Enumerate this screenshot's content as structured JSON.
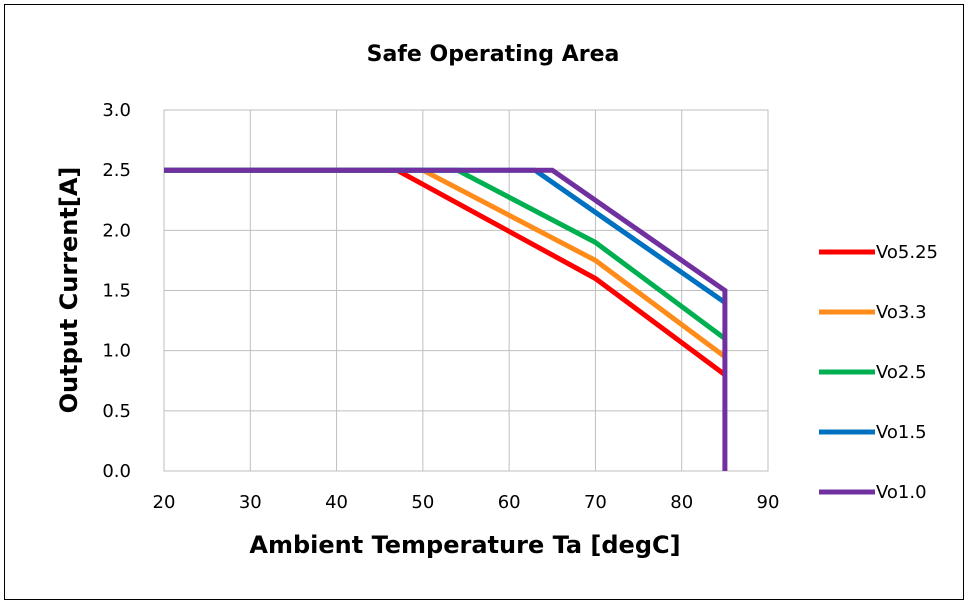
{
  "chart_data": {
    "type": "line",
    "title": "Safe Operating Area",
    "xlabel": "Ambient Temperature Ta [degC]",
    "ylabel": "Output Current[A]",
    "xlim": [
      20,
      90
    ],
    "ylim": [
      0,
      3.0
    ],
    "x_ticks": [
      "20",
      "30",
      "40",
      "50",
      "60",
      "70",
      "80",
      "90"
    ],
    "y_ticks": [
      "0.0",
      "0.5",
      "1.0",
      "1.5",
      "2.0",
      "2.5",
      "3.0"
    ],
    "grid": true,
    "legend_position": "right",
    "series": [
      {
        "name": "Vo5.25",
        "color": "#ff0000",
        "points": [
          [
            20,
            2.5
          ],
          [
            47,
            2.5
          ],
          [
            70,
            1.6
          ],
          [
            85,
            0.8
          ]
        ]
      },
      {
        "name": "Vo3.3",
        "color": "#ff8c1a",
        "points": [
          [
            20,
            2.5
          ],
          [
            50,
            2.5
          ],
          [
            70,
            1.75
          ],
          [
            85,
            0.95
          ]
        ]
      },
      {
        "name": "Vo2.5",
        "color": "#00b050",
        "points": [
          [
            20,
            2.5
          ],
          [
            54,
            2.5
          ],
          [
            70,
            1.9
          ],
          [
            85,
            1.1
          ]
        ]
      },
      {
        "name": "Vo1.5",
        "color": "#0070c0",
        "points": [
          [
            20,
            2.5
          ],
          [
            63,
            2.5
          ],
          [
            70,
            2.15
          ],
          [
            85,
            1.4
          ]
        ]
      },
      {
        "name": "Vo1.0",
        "color": "#7030a0",
        "points": [
          [
            20,
            2.5
          ],
          [
            65,
            2.5
          ],
          [
            85,
            1.5
          ],
          [
            85,
            0
          ]
        ]
      }
    ]
  }
}
